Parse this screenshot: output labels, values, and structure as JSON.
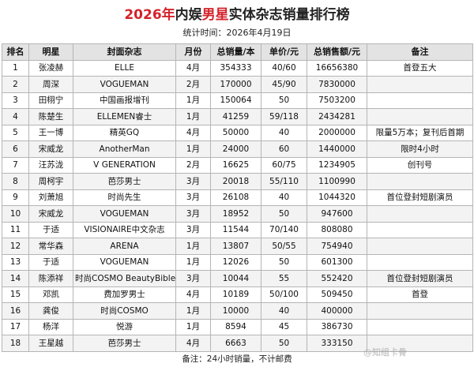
{
  "title": {
    "year": "2026年",
    "pre": "内娱",
    "accent": "男星",
    "post": "实体杂志销量排行榜"
  },
  "subtitle": "统计时间：2026年4月19日",
  "columns": [
    "排名",
    "明星",
    "封面杂志",
    "月份",
    "总销量/本",
    "单价/元",
    "总销售额/元",
    "备注"
  ],
  "rows": [
    {
      "rank": "1",
      "star": "张凌赫",
      "magazine": "ELLE",
      "month": "4月",
      "sales": "354333",
      "price": "40/60",
      "revenue": "16656380",
      "note": "首登五大"
    },
    {
      "rank": "2",
      "star": "周深",
      "magazine": "VOGUEMAN",
      "month": "2月",
      "sales": "170000",
      "price": "45/90",
      "revenue": "7830000",
      "note": ""
    },
    {
      "rank": "3",
      "star": "田栩宁",
      "magazine": "中国画报增刊",
      "month": "1月",
      "sales": "150064",
      "price": "50",
      "revenue": "7503200",
      "note": ""
    },
    {
      "rank": "4",
      "star": "陈楚生",
      "magazine": "ELLEMEN睿士",
      "month": "1月",
      "sales": "41259",
      "price": "59/118",
      "revenue": "2434281",
      "note": ""
    },
    {
      "rank": "5",
      "star": "王一博",
      "magazine": "精英GQ",
      "month": "4月",
      "sales": "50000",
      "price": "40",
      "revenue": "2000000",
      "note": "限量5万本；复刊后首期"
    },
    {
      "rank": "6",
      "star": "宋威龙",
      "magazine": "AnotherMan",
      "month": "1月",
      "sales": "24000",
      "price": "60",
      "revenue": "1440000",
      "note": "限时4小时"
    },
    {
      "rank": "7",
      "star": "汪苏泷",
      "magazine": "V GENERATION",
      "month": "2月",
      "sales": "16625",
      "price": "60/75",
      "revenue": "1234905",
      "note": "创刊号"
    },
    {
      "rank": "8",
      "star": "周柯宇",
      "magazine": "芭莎男士",
      "month": "3月",
      "sales": "20018",
      "price": "55/110",
      "revenue": "1100990",
      "note": ""
    },
    {
      "rank": "9",
      "star": "刘萧旭",
      "magazine": "时尚先生",
      "month": "3月",
      "sales": "26108",
      "price": "40",
      "revenue": "1044320",
      "note": "首位登封短剧演员"
    },
    {
      "rank": "10",
      "star": "宋威龙",
      "magazine": "VOGUEMAN",
      "month": "3月",
      "sales": "18952",
      "price": "50",
      "revenue": "947600",
      "note": ""
    },
    {
      "rank": "11",
      "star": "于适",
      "magazine": "VISIONAIRE中文杂志",
      "month": "3月",
      "sales": "11544",
      "price": "70/140",
      "revenue": "808080",
      "note": ""
    },
    {
      "rank": "12",
      "star": "常华森",
      "magazine": "ARENA",
      "month": "1月",
      "sales": "13807",
      "price": "50/55",
      "revenue": "754940",
      "note": ""
    },
    {
      "rank": "13",
      "star": "于适",
      "magazine": "VOGUEMAN",
      "month": "1月",
      "sales": "12026",
      "price": "50",
      "revenue": "601300",
      "note": ""
    },
    {
      "rank": "14",
      "star": "陈添祥",
      "magazine": "时尚COSMO BeautyBible",
      "month": "3月",
      "sales": "10044",
      "price": "55",
      "revenue": "552420",
      "note": "首位登封短剧演员"
    },
    {
      "rank": "15",
      "star": "邓凯",
      "magazine": "费加罗男士",
      "month": "4月",
      "sales": "10189",
      "price": "50/100",
      "revenue": "509450",
      "note": "首登"
    },
    {
      "rank": "16",
      "star": "龚俊",
      "magazine": "时尚COSMO",
      "month": "1月",
      "sales": "10000",
      "price": "40",
      "revenue": "400000",
      "note": ""
    },
    {
      "rank": "17",
      "star": "杨洋",
      "magazine": "悦游",
      "month": "1月",
      "sales": "8594",
      "price": "45",
      "revenue": "386730",
      "note": ""
    },
    {
      "rank": "18",
      "star": "王星越",
      "magazine": "芭莎男士",
      "month": "4月",
      "sales": "6663",
      "price": "50",
      "revenue": "333150",
      "note": ""
    }
  ],
  "footer": "备注：24小时销量，不计邮费",
  "watermark": "@知组卡骨",
  "colors": {
    "accent": "#d4222a",
    "header_bg": "#e3e3e3",
    "border": "#b5b5b5"
  }
}
